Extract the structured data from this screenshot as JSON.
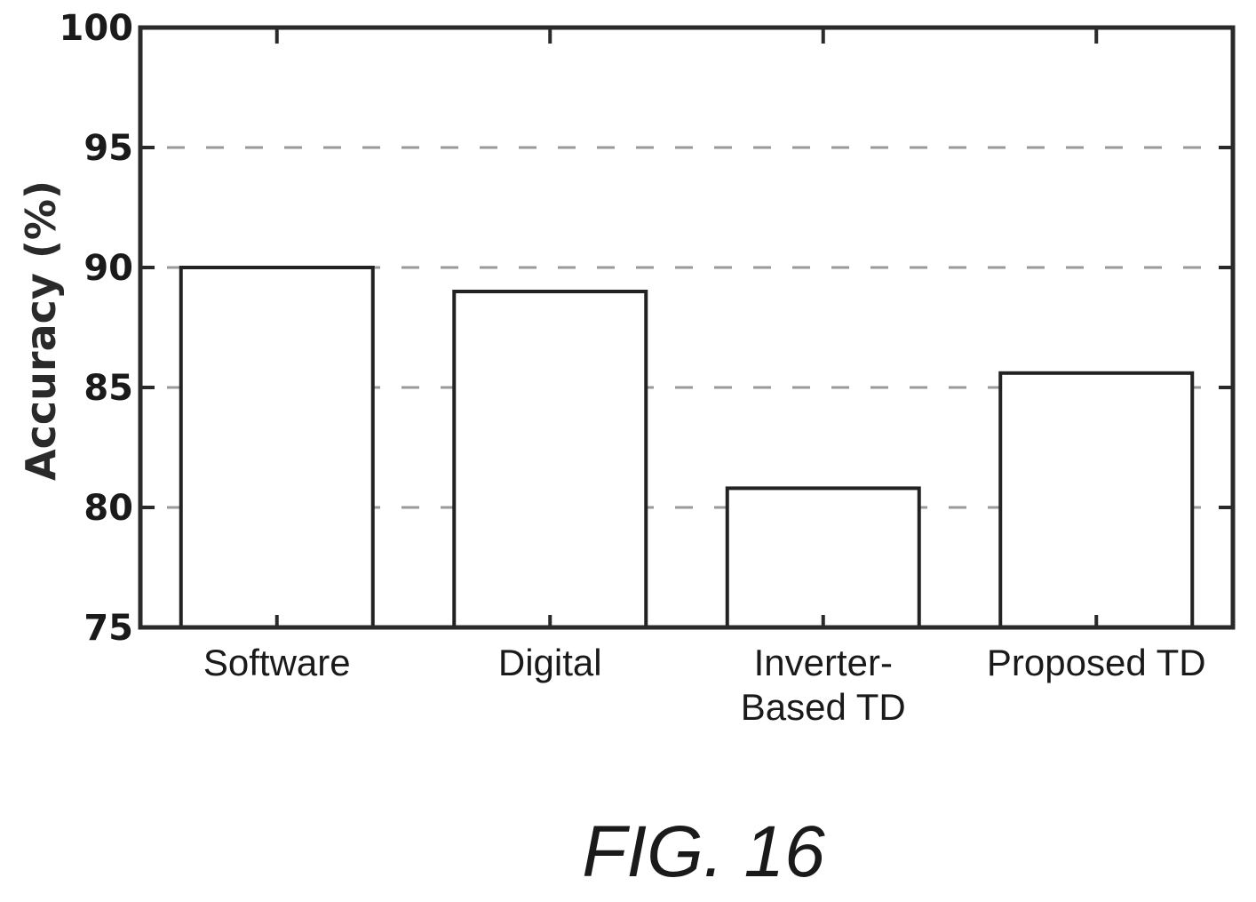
{
  "chart_data": {
    "type": "bar",
    "categories": [
      "Software",
      "Digital",
      "Inverter-Based TD",
      "Proposed TD"
    ],
    "category_lines": [
      [
        "Software"
      ],
      [
        "Digital"
      ],
      [
        "Inverter-",
        "Based TD"
      ],
      [
        "Proposed TD"
      ]
    ],
    "values": [
      90.0,
      89.0,
      80.8,
      85.6
    ],
    "ylabel": "Accuracy (%)",
    "xlabel": "",
    "ylim": [
      75,
      100
    ],
    "yticks": [
      75,
      80,
      85,
      90,
      95,
      100
    ],
    "grid": "horizontal-dashed",
    "bar_fill": "#ffffff",
    "bar_stroke": "#222222"
  },
  "caption": "FIG. 16"
}
